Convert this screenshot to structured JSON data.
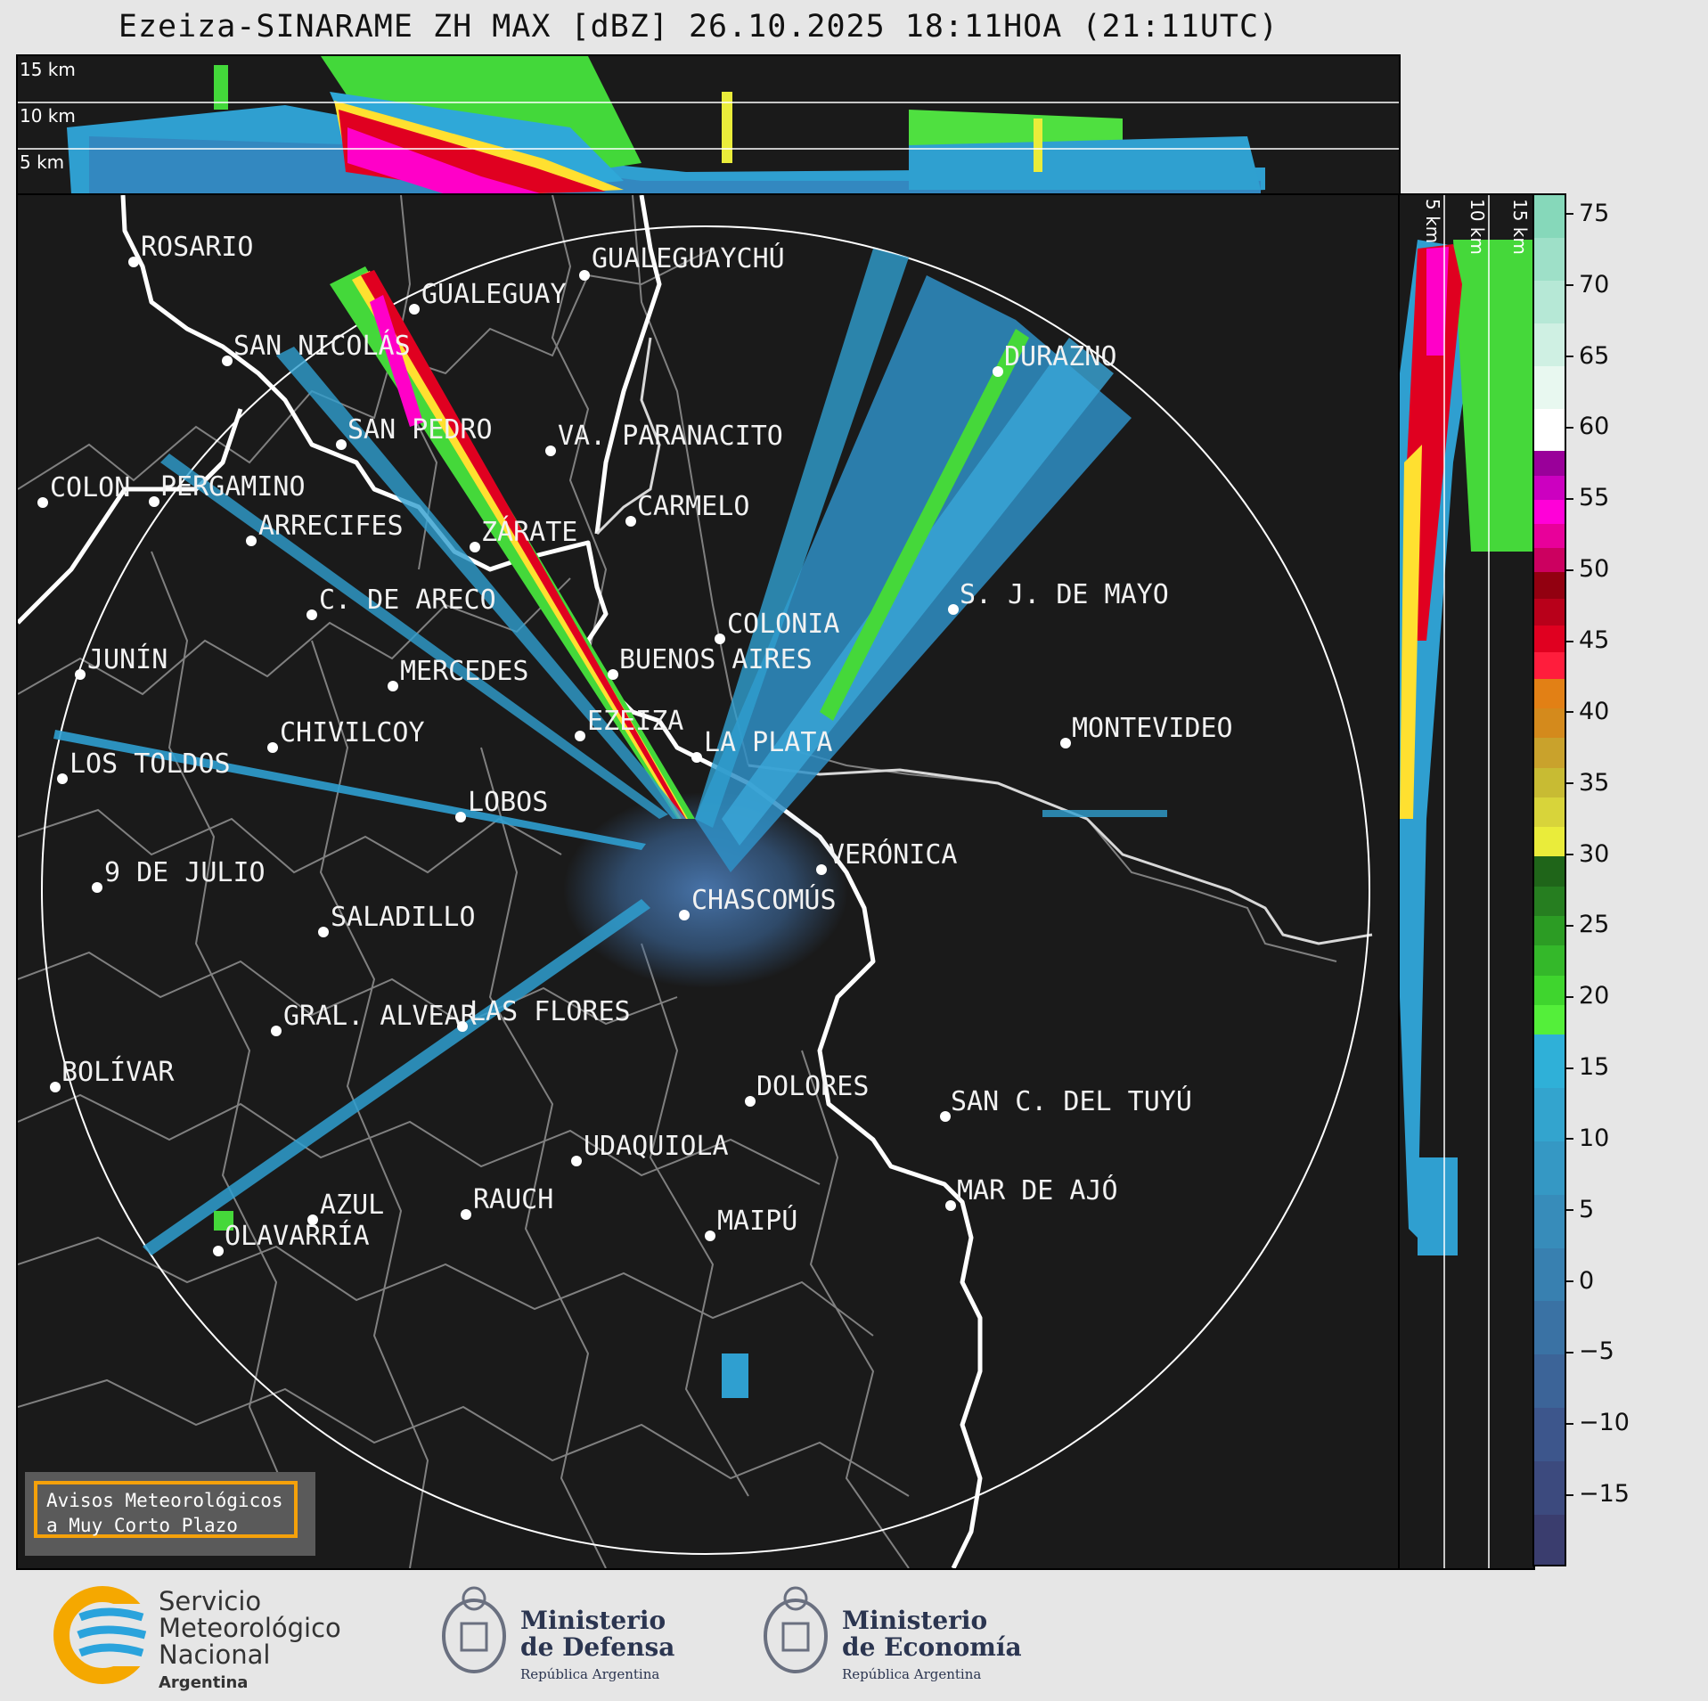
{
  "title": "Ezeiza-SINARAME ZH MAX [dBZ] 26.10.2025 18:11HOA (21:11UTC)",
  "height_labels_top": [
    "15 km",
    "10 km",
    "5 km"
  ],
  "height_labels_side": [
    "5 km",
    "10 km",
    "15 km"
  ],
  "cities": [
    {
      "name": "ROSARIO"
    },
    {
      "name": "GUALEGUAYCHÚ"
    },
    {
      "name": "GUALEGUAY"
    },
    {
      "name": "SAN NICOLÁS"
    },
    {
      "name": "DURAZNO"
    },
    {
      "name": "SAN PEDRO"
    },
    {
      "name": "VA. PARANACITO"
    },
    {
      "name": "COLON"
    },
    {
      "name": "PERGAMINO"
    },
    {
      "name": "CARMELO"
    },
    {
      "name": "ARRECIFES"
    },
    {
      "name": "ZÁRATE"
    },
    {
      "name": "C. DE ARECO"
    },
    {
      "name": "S. J. DE MAYO"
    },
    {
      "name": "COLONIA"
    },
    {
      "name": "JUNÍN"
    },
    {
      "name": "BUENOS AIRES"
    },
    {
      "name": "MERCEDES"
    },
    {
      "name": "EZEIZA"
    },
    {
      "name": "MONTEVIDEO"
    },
    {
      "name": "CHIVILCOY"
    },
    {
      "name": "LA PLATA"
    },
    {
      "name": "LOS TOLDOS"
    },
    {
      "name": "LOBOS"
    },
    {
      "name": "VERÓNICA"
    },
    {
      "name": "9 DE JULIO"
    },
    {
      "name": "CHASCOMÚS"
    },
    {
      "name": "SALADILLO"
    },
    {
      "name": "GRAL. ALVEAR"
    },
    {
      "name": "LAS FLORES"
    },
    {
      "name": "BOLÍVAR"
    },
    {
      "name": "DOLORES"
    },
    {
      "name": "SAN C. DEL TUYÚ"
    },
    {
      "name": "UDAQUIOLA"
    },
    {
      "name": "MAR DE AJÓ"
    },
    {
      "name": "AZUL"
    },
    {
      "name": "RAUCH"
    },
    {
      "name": "MAIPÚ"
    },
    {
      "name": "OLAVARRÍA"
    }
  ],
  "colorbar": {
    "unit": "dBZ",
    "ticks": [
      "75",
      "70",
      "65",
      "60",
      "55",
      "50",
      "45",
      "40",
      "35",
      "30",
      "25",
      "20",
      "15",
      "10",
      "5",
      "0",
      "−5",
      "−10",
      "−15"
    ],
    "min": -20,
    "max": 76.5,
    "bands": [
      {
        "from": -20,
        "to": 17.5,
        "colors": [
          "#3a3d6e",
          "#3c4a7e",
          "#3d568c",
          "#3c6498",
          "#3a72a4",
          "#3880b0",
          "#378cba",
          "#3598c4",
          "#33a4ce",
          "#2fb0d8"
        ]
      },
      {
        "from": 17.5,
        "to": 30,
        "colors": [
          "#54ef3a",
          "#3fd52e",
          "#34b82a",
          "#2c9c24",
          "#267e20",
          "#1f6519"
        ]
      },
      {
        "from": 30,
        "to": 42.5,
        "colors": [
          "#eaec3a",
          "#d8d43a",
          "#c8bb33",
          "#c9a22c",
          "#d48a1c",
          "#e28015"
        ]
      },
      {
        "from": 42.5,
        "to": 50,
        "colors": [
          "#ff1d3c",
          "#e00020",
          "#b8001a",
          "#920010"
        ]
      },
      {
        "from": 50,
        "to": 58.5,
        "colors": [
          "#cc0060",
          "#e8009a",
          "#ff00d8",
          "#cc00c0",
          "#9a009a"
        ]
      },
      {
        "from": 58.5,
        "to": 76.5,
        "colors": [
          "#ffffff",
          "#e8f8f0",
          "#cff0e3",
          "#b6e8d6",
          "#9ee0c8",
          "#86d8ba"
        ]
      }
    ]
  },
  "warning_box": {
    "line1": "Avisos Meteorológicos",
    "line2": "a Muy Corto Plazo"
  },
  "footer": {
    "smn": {
      "line1": "Servicio",
      "line2": "Meteorológico",
      "line3": "Nacional",
      "line4": "Argentina"
    },
    "defensa": {
      "line1": "Ministerio",
      "line2": "de Defensa",
      "line3": "República Argentina"
    },
    "economia": {
      "line1": "Ministerio",
      "line2": "de Economía",
      "line3": "República Argentina"
    }
  },
  "colors": {
    "background": "#1a1a1a",
    "page": "#e6e6e6",
    "boundaries": "#808080",
    "coast": "#ffffff"
  }
}
